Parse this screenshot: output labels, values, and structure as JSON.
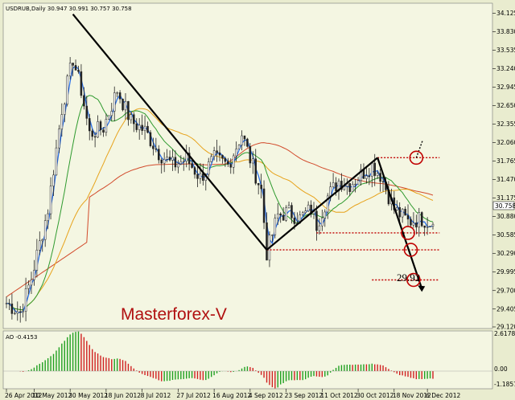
{
  "header": {
    "symbol_line": "USDRUB,Daily  30.947 30.991 30.757 30.758"
  },
  "watermark": "Masterforex-V",
  "annotation": "29.92",
  "price_label": "30.758",
  "ao_panel": {
    "label": "AO -0.4153",
    "y_ticks": [
      "2.6178",
      "0.00",
      "-1.1857"
    ]
  },
  "colors": {
    "panel_bg": "#f4f6e2",
    "candle": "#222222",
    "ma_fast": "#2a6fe8",
    "ma_green": "#2e9a2e",
    "ma_orange": "#e7a21a",
    "ma_red": "#d24b2c",
    "level": "#c00000",
    "ao_up": "#20a020",
    "ao_down": "#d02020",
    "watermark": "#b01010"
  },
  "chart_data": {
    "type": "candlestick",
    "y_ticks": [
      "34.125",
      "33.830",
      "33.535",
      "33.240",
      "32.945",
      "32.650",
      "32.355",
      "32.060",
      "31.765",
      "31.470",
      "31.175",
      "30.880",
      "30.585",
      "30.290",
      "29.995",
      "29.700",
      "29.405",
      "29.120"
    ],
    "x_ticks": [
      "26 Apr 2012",
      "10 May 2012",
      "30 May 2012",
      "18 Jun 2012",
      "8 Jul 2012",
      "27 Jul 2012",
      "16 Aug 2012",
      "4 Sep 2012",
      "23 Sep 2012",
      "11 Oct 2012",
      "30 Oct 2012",
      "18 Nov 2012",
      "6 Dec 2012"
    ],
    "ylim": [
      29.12,
      34.26
    ],
    "n_days": 155,
    "close_path": [
      [
        0,
        29.5
      ],
      [
        5,
        29.35
      ],
      [
        9,
        29.9
      ],
      [
        15,
        31.0
      ],
      [
        20,
        32.6
      ],
      [
        24,
        33.4
      ],
      [
        27,
        32.9
      ],
      [
        30,
        32.2
      ],
      [
        35,
        32.3
      ],
      [
        40,
        32.9
      ],
      [
        45,
        32.4
      ],
      [
        50,
        32.25
      ],
      [
        55,
        31.9
      ],
      [
        60,
        31.7
      ],
      [
        65,
        31.8
      ],
      [
        70,
        31.5
      ],
      [
        75,
        31.8
      ],
      [
        80,
        31.7
      ],
      [
        85,
        32.2
      ],
      [
        88,
        31.8
      ],
      [
        92,
        31.3
      ],
      [
        94,
        30.3
      ],
      [
        98,
        30.9
      ],
      [
        102,
        30.95
      ],
      [
        106,
        30.85
      ],
      [
        110,
        31.0
      ],
      [
        112,
        30.75
      ],
      [
        116,
        31.2
      ],
      [
        120,
        31.45
      ],
      [
        124,
        31.4
      ],
      [
        128,
        31.55
      ],
      [
        132,
        31.7
      ],
      [
        135,
        31.55
      ],
      [
        140,
        31.0
      ],
      [
        145,
        30.8
      ],
      [
        150,
        30.85
      ],
      [
        154,
        30.76
      ]
    ],
    "levels": [
      {
        "from": 134,
        "to": 150,
        "y": 31.82
      },
      {
        "from": 112,
        "to": 150,
        "y": 30.62
      },
      {
        "from": 94,
        "to": 150,
        "y": 30.35
      },
      {
        "from": 132,
        "to": 150,
        "y": 29.87
      }
    ],
    "trend_lines": [
      {
        "x1": 24,
        "y1": 34.11,
        "x2": 94,
        "y2": 30.35
      },
      {
        "x1": 94,
        "y1": 30.35,
        "x2": 134,
        "y2": 31.82
      },
      {
        "x1": 134,
        "y1": 31.82,
        "x2": 150,
        "y2": 29.73
      }
    ],
    "circles": [
      {
        "x": 145,
        "y": 30.62
      },
      {
        "x": 146,
        "y": 30.35
      },
      {
        "x": 147,
        "y": 29.87
      },
      {
        "x": 148,
        "y": 31.82
      }
    ]
  }
}
